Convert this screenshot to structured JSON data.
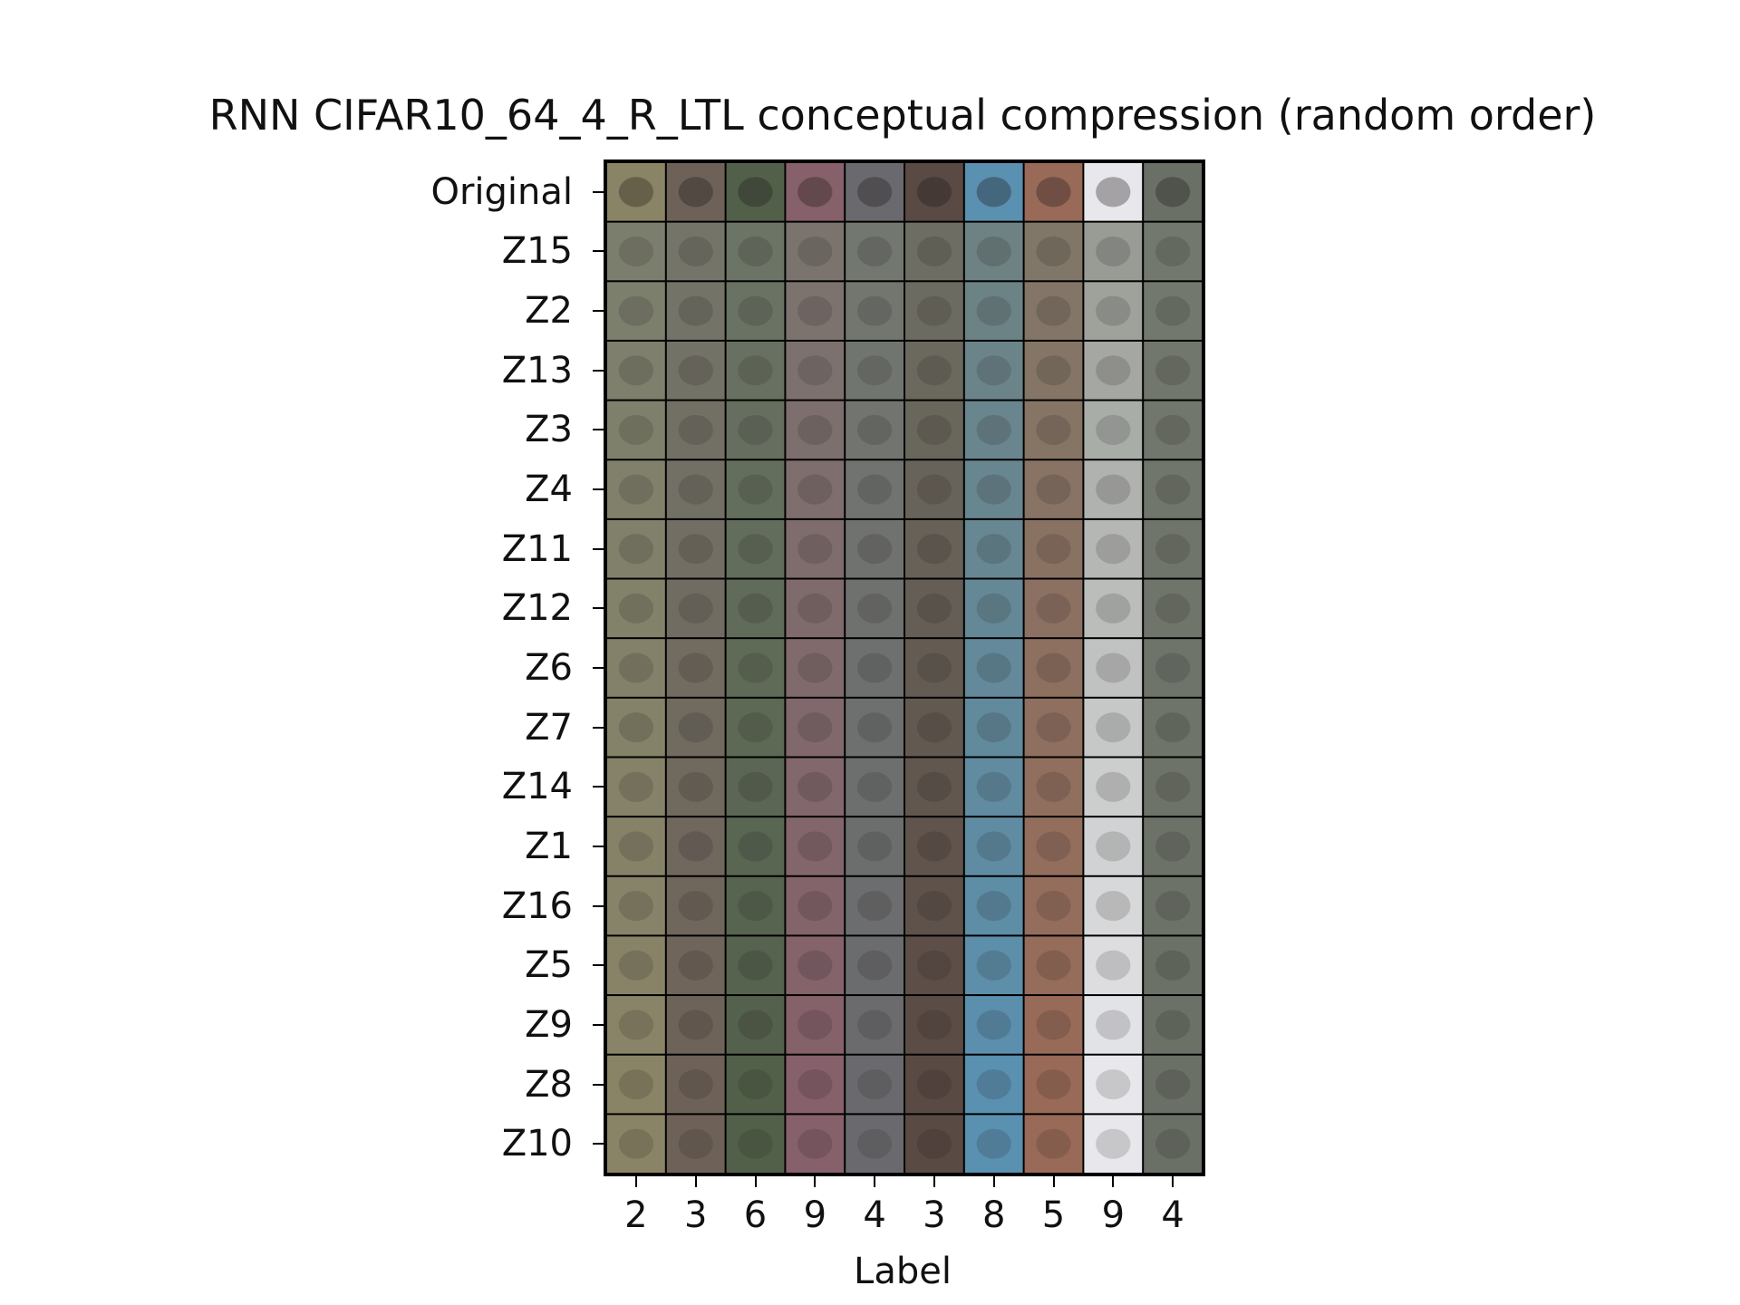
{
  "chart_data": {
    "type": "heatmap",
    "title": "RNN CIFAR10_64_4_R_LTL conceptual compression (random order)",
    "xlabel": "Label",
    "ylabel": "",
    "row_labels": [
      "Original",
      "Z15",
      "Z2",
      "Z13",
      "Z3",
      "Z4",
      "Z11",
      "Z12",
      "Z6",
      "Z7",
      "Z14",
      "Z1",
      "Z16",
      "Z5",
      "Z9",
      "Z8",
      "Z10"
    ],
    "column_labels": [
      "2",
      "3",
      "6",
      "9",
      "4",
      "3",
      "8",
      "5",
      "9",
      "4"
    ],
    "column_colors": [
      "#8a8466",
      "#6e6258",
      "#52604a",
      "#86606a",
      "#6a6a6e",
      "#5a4a44",
      "#5a90b0",
      "#9a6a58",
      "#e8e8ec",
      "#6a7066"
    ],
    "grid": false
  }
}
